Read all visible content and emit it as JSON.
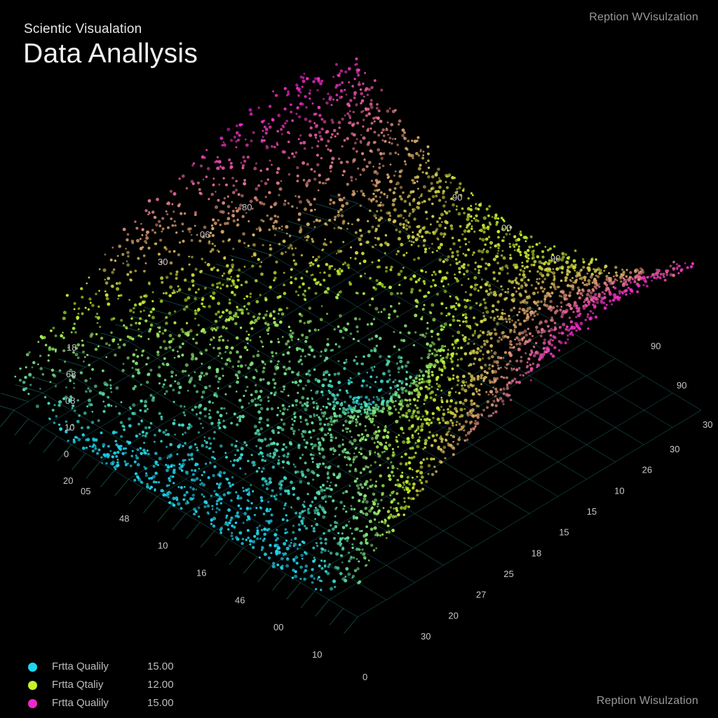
{
  "header": {
    "subtitle": "Scientic Visualation",
    "title": "Data Anallysis",
    "watermark_top": "Reption WVisulzation",
    "watermark_bottom": "Reption Wisulzation"
  },
  "colors": {
    "background": "#000000",
    "cyan": "#1fd6ef",
    "lime": "#c6f22a",
    "magenta": "#f028c8",
    "grid": "#2fa7a0"
  },
  "legend": [
    {
      "label": "Frtta Qualily",
      "value": "15.00",
      "color": "#1fd6ef"
    },
    {
      "label": "Frtta Qtaliy",
      "value": "12.00",
      "color": "#c6f22a"
    },
    {
      "label": "Frtta Qualily",
      "value": "15.00",
      "color": "#f028c8"
    }
  ],
  "chart_data": {
    "type": "scatter",
    "projection": "isometric 3D point cloud over a square grid plane",
    "surface": "saddle-shaped surface: high corners at back and left/right, central dip, front corner low",
    "color_mapping": "height gradient: low = cyan, mid = lime/yellow, high = magenta",
    "grid": true,
    "legend_position": "bottom-left",
    "series": [
      {
        "name": "Frtta Qualily",
        "color": "#1fd6ef",
        "level": "low"
      },
      {
        "name": "Frtta Qtaliy",
        "color": "#c6f22a",
        "level": "mid"
      },
      {
        "name": "Frtta Qualily",
        "color": "#f028c8",
        "level": "high"
      }
    ],
    "tick_labels": {
      "back_left": [
        "80",
        "06",
        "30"
      ],
      "back_right": [
        "90",
        "00",
        "90"
      ],
      "left_outer": [
        "18",
        "68",
        "08",
        "10",
        "0",
        "20"
      ],
      "front_left": [
        "05",
        "48",
        "10",
        "16",
        "46",
        "00",
        "10"
      ],
      "front_corner": [
        "0"
      ],
      "front_right": [
        "30",
        "20",
        "27",
        "25",
        "18",
        "15",
        "15",
        "10",
        "26",
        "30"
      ],
      "right_outer": [
        "90",
        "90",
        "30"
      ]
    }
  }
}
